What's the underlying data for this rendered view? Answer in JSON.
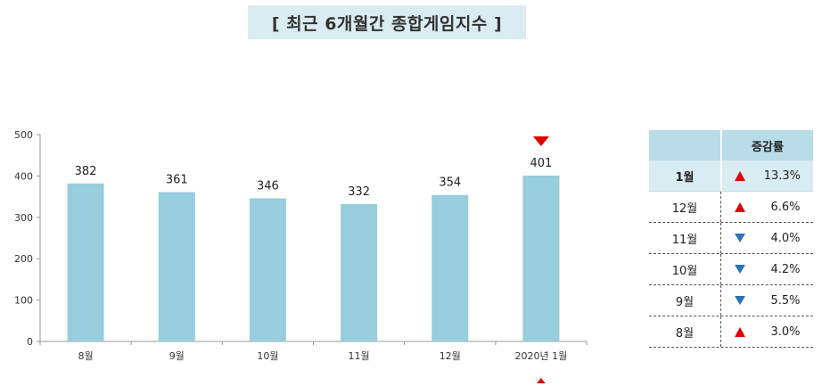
{
  "title": "[ 최근 6개월간 종합게임지수 ]",
  "chart_data": {
    "type": "bar",
    "categories": [
      "8월",
      "9월",
      "10월",
      "11월",
      "12월",
      "2020년 1월"
    ],
    "values": [
      382,
      361,
      346,
      332,
      354,
      401
    ],
    "ylim": [
      0,
      500
    ],
    "yticks": [
      0,
      100,
      200,
      300,
      400,
      500
    ],
    "bar_color": "#97cddd",
    "highlight_marker_color": "#e00000",
    "highlight_index": 5
  },
  "table": {
    "header": "증감률",
    "rows": [
      {
        "month": "1월",
        "direction": "up",
        "pct": "13.3%"
      },
      {
        "month": "12월",
        "direction": "up",
        "pct": "6.6%"
      },
      {
        "month": "11월",
        "direction": "down",
        "pct": "4.0%"
      },
      {
        "month": "10월",
        "direction": "down",
        "pct": "4.2%"
      },
      {
        "month": "9월",
        "direction": "down",
        "pct": "5.5%"
      },
      {
        "month": "8월",
        "direction": "up",
        "pct": "3.0%"
      }
    ]
  }
}
